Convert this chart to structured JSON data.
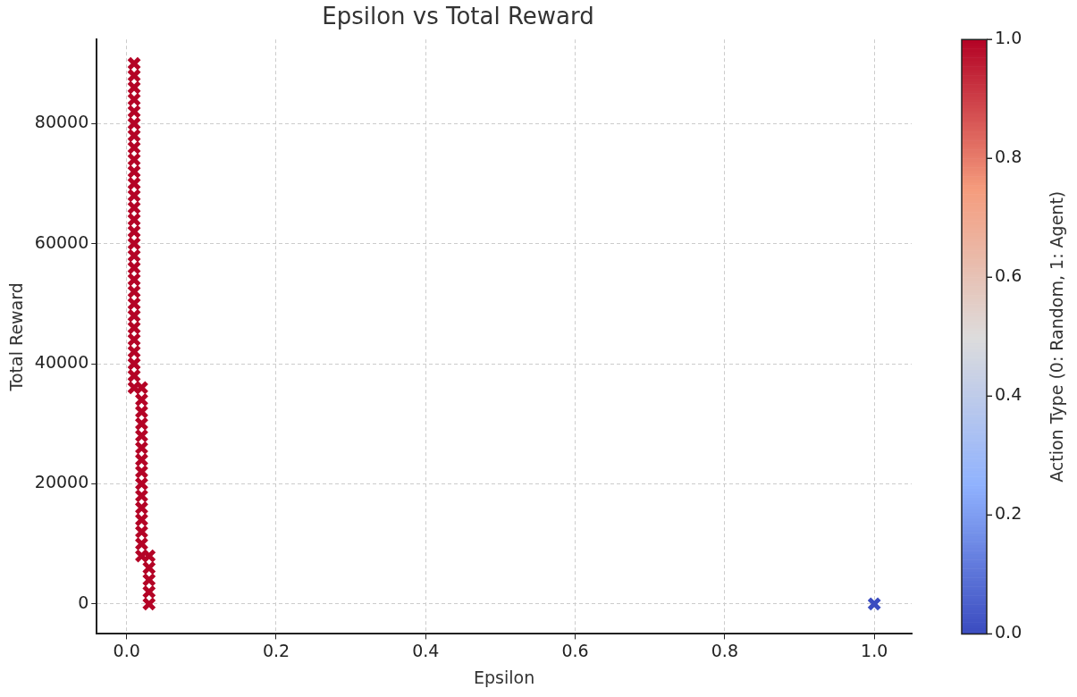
{
  "chart_data": {
    "type": "scatter",
    "title": "Epsilon vs Total Reward",
    "xlabel": "Epsilon",
    "ylabel": "Total Reward",
    "clabel": "Action Type (0: Random, 1: Agent)",
    "x": [
      1.0,
      0.03,
      0.03,
      0.03,
      0.03,
      0.03,
      0.02,
      0.02,
      0.02,
      0.02,
      0.02,
      0.02,
      0.02,
      0.02,
      0.02,
      0.02,
      0.02,
      0.02,
      0.02,
      0.02,
      0.02,
      0.01,
      0.01,
      0.01,
      0.01,
      0.01,
      0.01,
      0.01,
      0.01,
      0.01,
      0.01,
      0.01,
      0.01,
      0.01,
      0.01,
      0.01,
      0.01,
      0.01,
      0.01,
      0.01,
      0.01,
      0.01,
      0.01,
      0.01,
      0.01,
      0.01,
      0.01,
      0.01,
      0.01
    ],
    "values": [
      0,
      0,
      2000,
      4000,
      6000,
      8000,
      8000,
      10000,
      12000,
      14000,
      16000,
      18000,
      20000,
      22000,
      24000,
      26000,
      28000,
      30000,
      32000,
      34000,
      36000,
      36000,
      38000,
      40000,
      42000,
      44000,
      46000,
      48000,
      50000,
      52000,
      54000,
      56000,
      58000,
      60000,
      62000,
      64000,
      66000,
      68000,
      70000,
      72000,
      74000,
      76000,
      78000,
      80000,
      82000,
      84000,
      86000,
      88000,
      90000
    ],
    "cvalues": [
      0,
      1,
      1,
      1,
      1,
      1,
      1,
      1,
      1,
      1,
      1,
      1,
      1,
      1,
      1,
      1,
      1,
      1,
      1,
      1,
      1,
      1,
      1,
      1,
      1,
      1,
      1,
      1,
      1,
      1,
      1,
      1,
      1,
      1,
      1,
      1,
      1,
      1,
      1,
      1,
      1,
      1,
      1,
      1,
      1,
      1,
      1,
      1,
      1
    ],
    "marker": "cross",
    "grid": true,
    "legend": false,
    "xlim": [
      -0.04,
      1.05
    ],
    "xticks": [
      {
        "value": 0,
        "label": "0.0"
      },
      0.2,
      0.4,
      0.6,
      0.8,
      {
        "value": 1,
        "label": "1.0"
      }
    ],
    "ylim": [
      -5000,
      94000
    ],
    "yticks": [
      0,
      20000,
      40000,
      60000,
      80000
    ],
    "clim": [
      0,
      1
    ],
    "cticks": [
      {
        "value": 0,
        "label": "0.0"
      },
      0.2,
      0.4,
      0.6,
      0.8,
      {
        "value": 1,
        "label": "1.0"
      }
    ]
  }
}
